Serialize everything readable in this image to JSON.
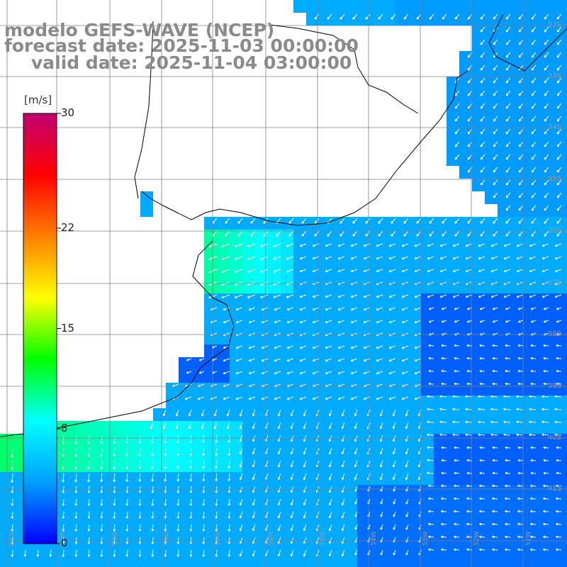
{
  "title": {
    "line1": "modelo GEFS-WAVE (NCEP)",
    "line2": "forecast date: 2025-11-03 00:00:00",
    "line3": "valid date: 2025-11-04 03:00:00"
  },
  "colorbar": {
    "unit": "[m/s]",
    "min": 0,
    "max": 30,
    "ticks": [
      "30",
      "22",
      "15",
      "8",
      "0"
    ],
    "tick_values": [
      30,
      22,
      15,
      8,
      0
    ],
    "colors": [
      "#0000ff",
      "#00a0ff",
      "#00ffff",
      "#00ff00",
      "#ffff00",
      "#ff8000",
      "#ff0000",
      "#c0006f"
    ]
  },
  "axes": {
    "lat_labels": [
      "32S",
      "33S",
      "34S",
      "35S",
      "36S",
      "37S",
      "38S",
      "39S",
      "40S",
      "41S"
    ],
    "lon_labels": [
      "61W",
      "60W",
      "59W",
      "58W",
      "57W",
      "56W",
      "55W",
      "54W",
      "53W",
      "52W",
      "51W"
    ]
  },
  "wind_field": {
    "description": "",
    "typical_speed_range_ms": [
      1,
      10
    ],
    "strongest_region": "southwest coast",
    "weakest_region": "southeast open ocean",
    "dominant_direction": "from the northeast"
  },
  "colors": {
    "land": "#ffffff",
    "coastline": "#000000",
    "grid": "#808080",
    "arrows": "#ffffff"
  }
}
